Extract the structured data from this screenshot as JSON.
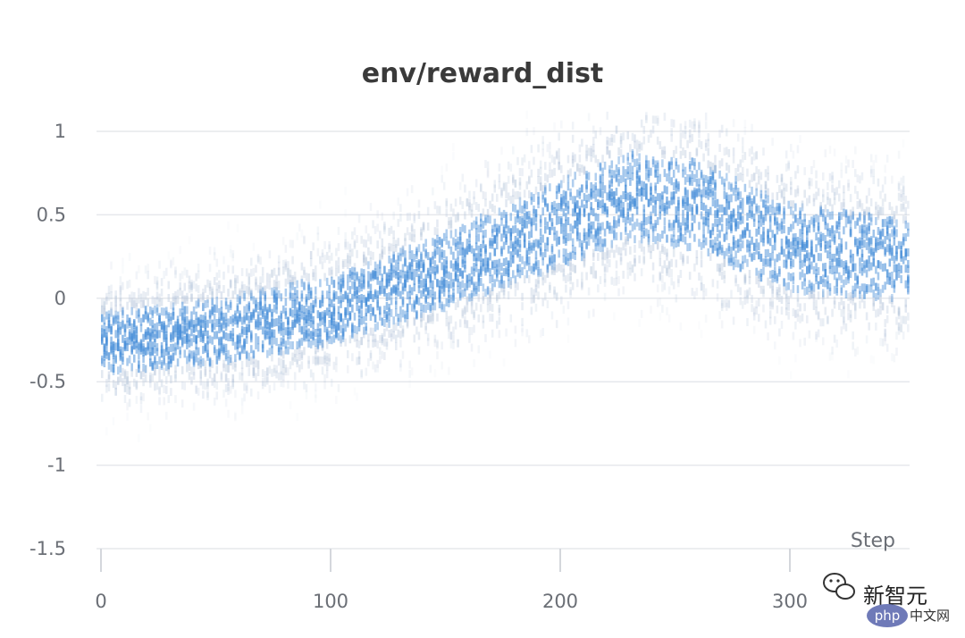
{
  "chart_data": {
    "type": "heatmap",
    "title": "env/reward_dist",
    "xlabel": "Step",
    "ylabel": "",
    "xlim": [
      0,
      355
    ],
    "ylim": [
      -1.5,
      1.1
    ],
    "x_ticks": [
      0,
      100,
      200,
      300
    ],
    "x_tick_labels": [
      "0",
      "100",
      "200",
      "300"
    ],
    "y_ticks": [
      1,
      0.5,
      0,
      -0.5,
      -1,
      -1.5
    ],
    "y_tick_labels": [
      "1",
      "0.5",
      "0",
      "-0.5",
      "-1",
      "-1.5"
    ],
    "grid": true,
    "color": "#4a90d9",
    "series": [
      {
        "kind": "histogram-over-steps",
        "trend_mean": [
          {
            "step": 0,
            "value": -0.27
          },
          {
            "step": 50,
            "value": -0.2
          },
          {
            "step": 100,
            "value": -0.07
          },
          {
            "step": 150,
            "value": 0.17
          },
          {
            "step": 200,
            "value": 0.45
          },
          {
            "step": 230,
            "value": 0.62
          },
          {
            "step": 260,
            "value": 0.55
          },
          {
            "step": 300,
            "value": 0.3
          },
          {
            "step": 355,
            "value": 0.22
          }
        ],
        "trend_spread": [
          {
            "step": 0,
            "value": 0.2
          },
          {
            "step": 100,
            "value": 0.22
          },
          {
            "step": 200,
            "value": 0.28
          },
          {
            "step": 260,
            "value": 0.3
          },
          {
            "step": 355,
            "value": 0.26
          }
        ]
      }
    ]
  },
  "watermark": {
    "brand": "新智元",
    "site": "php",
    "site_suffix": "中文网"
  }
}
